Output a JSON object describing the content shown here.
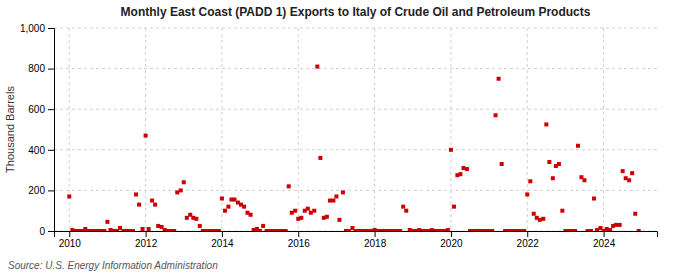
{
  "chart_data": {
    "type": "scatter",
    "title": "Monthly East Coast (PADD 1) Exports to Italy of Crude Oil and Petroleum Products",
    "ylabel": "Thousand Barrels",
    "source": "Source: U.S. Energy Information Administration",
    "color": "#cc0000",
    "marker": "square",
    "grid": true,
    "xlim": [
      2009.6,
      2025.4
    ],
    "xticks": [
      2010,
      2012,
      2014,
      2016,
      2018,
      2020,
      2022,
      2024
    ],
    "ylim": [
      0,
      1000
    ],
    "yticks": [
      0,
      200,
      400,
      600,
      800,
      {
        "value": 1000,
        "label": "1,000"
      }
    ],
    "x": [
      2010.0,
      2010.08,
      2010.17,
      2010.25,
      2010.33,
      2010.42,
      2010.5,
      2010.58,
      2010.67,
      2010.75,
      2010.83,
      2010.92,
      2011.0,
      2011.08,
      2011.17,
      2011.25,
      2011.33,
      2011.42,
      2011.5,
      2011.58,
      2011.67,
      2011.75,
      2011.83,
      2011.92,
      2012.0,
      2012.08,
      2012.17,
      2012.25,
      2012.33,
      2012.42,
      2012.5,
      2012.58,
      2012.67,
      2012.75,
      2012.83,
      2012.92,
      2013.0,
      2013.08,
      2013.17,
      2013.25,
      2013.33,
      2013.42,
      2013.5,
      2013.58,
      2013.67,
      2013.75,
      2013.83,
      2013.92,
      2014.0,
      2014.08,
      2014.17,
      2014.25,
      2014.33,
      2014.42,
      2014.5,
      2014.58,
      2014.67,
      2014.75,
      2014.83,
      2014.92,
      2015.0,
      2015.08,
      2015.17,
      2015.25,
      2015.33,
      2015.42,
      2015.5,
      2015.58,
      2015.67,
      2015.75,
      2015.83,
      2015.92,
      2016.0,
      2016.08,
      2016.17,
      2016.25,
      2016.33,
      2016.42,
      2016.5,
      2016.58,
      2016.67,
      2016.75,
      2016.83,
      2016.92,
      2017.0,
      2017.08,
      2017.17,
      2017.25,
      2017.33,
      2017.42,
      2017.5,
      2017.58,
      2017.67,
      2017.75,
      2017.83,
      2017.92,
      2018.0,
      2018.08,
      2018.17,
      2018.25,
      2018.33,
      2018.42,
      2018.5,
      2018.58,
      2018.67,
      2018.75,
      2018.83,
      2018.92,
      2019.0,
      2019.08,
      2019.17,
      2019.25,
      2019.33,
      2019.42,
      2019.5,
      2019.58,
      2019.67,
      2019.75,
      2019.83,
      2019.92,
      2020.0,
      2020.08,
      2020.17,
      2020.25,
      2020.33,
      2020.42,
      2020.5,
      2020.58,
      2020.67,
      2020.75,
      2020.83,
      2020.92,
      2021.0,
      2021.08,
      2021.17,
      2021.25,
      2021.33,
      2021.42,
      2021.5,
      2021.58,
      2021.67,
      2021.75,
      2021.83,
      2021.92,
      2022.0,
      2022.08,
      2022.17,
      2022.25,
      2022.33,
      2022.42,
      2022.5,
      2022.58,
      2022.67,
      2022.75,
      2022.83,
      2022.92,
      2023.0,
      2023.08,
      2023.17,
      2023.25,
      2023.33,
      2023.42,
      2023.5,
      2023.58,
      2023.67,
      2023.75,
      2023.83,
      2023.92,
      2024.0,
      2024.08,
      2024.17,
      2024.25,
      2024.33,
      2024.42,
      2024.5,
      2024.58,
      2024.67,
      2024.75,
      2024.83,
      2024.92
    ],
    "values": [
      170,
      5,
      0,
      0,
      0,
      10,
      0,
      0,
      0,
      0,
      0,
      0,
      45,
      5,
      0,
      0,
      15,
      0,
      0,
      0,
      0,
      180,
      130,
      10,
      470,
      10,
      150,
      130,
      25,
      20,
      5,
      0,
      0,
      0,
      190,
      200,
      240,
      65,
      80,
      65,
      60,
      25,
      0,
      0,
      0,
      0,
      0,
      0,
      160,
      100,
      120,
      155,
      155,
      140,
      130,
      120,
      90,
      80,
      5,
      10,
      0,
      25,
      0,
      0,
      0,
      0,
      0,
      0,
      0,
      220,
      90,
      100,
      60,
      65,
      100,
      110,
      90,
      100,
      810,
      360,
      65,
      70,
      150,
      150,
      170,
      55,
      190,
      0,
      0,
      15,
      0,
      0,
      0,
      0,
      0,
      0,
      5,
      0,
      0,
      0,
      0,
      0,
      0,
      0,
      0,
      120,
      100,
      5,
      0,
      0,
      5,
      0,
      0,
      0,
      5,
      0,
      0,
      0,
      0,
      5,
      400,
      120,
      275,
      280,
      310,
      305,
      0,
      0,
      0,
      0,
      0,
      0,
      0,
      0,
      570,
      750,
      330,
      0,
      0,
      0,
      0,
      0,
      0,
      0,
      180,
      245,
      85,
      65,
      55,
      60,
      525,
      340,
      260,
      320,
      330,
      100,
      0,
      0,
      0,
      0,
      420,
      265,
      250,
      0,
      0,
      160,
      5,
      15,
      0,
      10,
      5,
      25,
      30,
      30,
      295,
      260,
      250,
      285,
      85,
      0
    ]
  }
}
